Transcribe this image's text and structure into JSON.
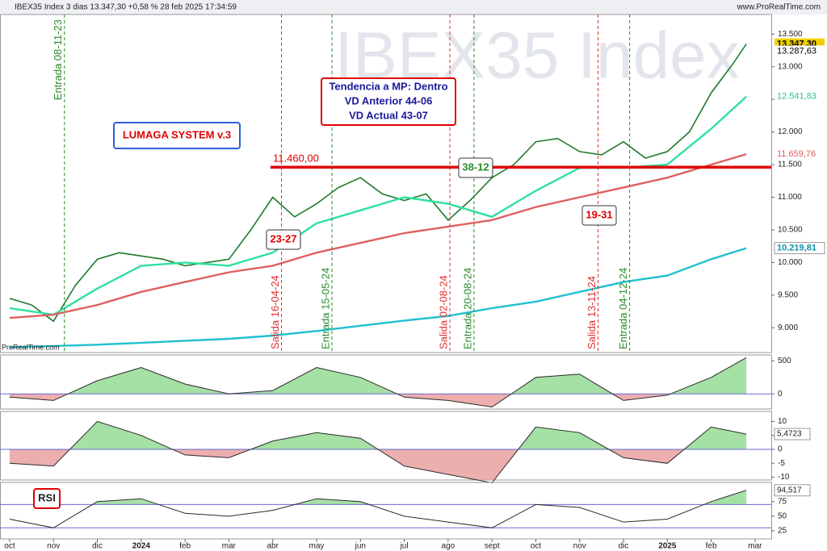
{
  "header": {
    "title": "IBEX35 Index 3 dias 13.347,30 +0,58 % 28 feb 2025 17:34:59",
    "site": "www.ProRealTime.com"
  },
  "chart_data": [
    {
      "type": "line",
      "watermark": "IBEX35 Index",
      "source": "ProRealTime.com",
      "system": "LUMAGA SYSTEM v.3",
      "trend_box": [
        "Tendencia a MP: Dentro",
        "VD Anterior 44-06",
        "VD Actual 43-07"
      ],
      "annotations": [
        "23-27",
        "38-12",
        "19-31"
      ],
      "xlim": [
        -0.22,
        17.37
      ],
      "ylim": [
        8620,
        13800
      ],
      "yticks": [
        {
          "value": 9000,
          "label": "9.000"
        },
        {
          "value": 9500,
          "label": "9.500"
        },
        {
          "value": 10000,
          "label": "10.000"
        },
        {
          "value": 10500,
          "label": "10.500"
        },
        {
          "value": 11000,
          "label": "11.000"
        },
        {
          "value": 11500,
          "label": "11.500"
        },
        {
          "value": 12000,
          "label": "12.000"
        },
        {
          "value": 12500,
          "label": "12.500"
        },
        {
          "value": 13000,
          "label": "13.000"
        },
        {
          "value": 13500,
          "label": "13.500"
        }
      ],
      "series": [
        {
          "color": "#1f7a2a",
          "x": [
            0,
            0.5,
            1,
            1.5,
            2,
            2.5,
            3,
            3.5,
            4,
            4.5,
            5,
            5.5,
            6,
            6.5,
            7,
            7.5,
            8,
            8.5,
            9,
            9.5,
            10,
            10.5,
            11,
            11.5,
            12,
            12.5,
            13,
            13.5,
            14,
            14.5,
            15,
            15.5,
            16,
            16.5,
            16.8
          ],
          "values": [
            9450,
            9350,
            9100,
            9650,
            10050,
            10150,
            10100,
            10050,
            9950,
            10000,
            10050,
            10500,
            11000,
            10700,
            10900,
            11150,
            11300,
            11050,
            10950,
            11050,
            10650,
            10950,
            11300,
            11500,
            11850,
            11900,
            11700,
            11650,
            11850,
            11600,
            11700,
            12000,
            12600,
            13050,
            13347.3
          ]
        },
        {
          "color": "#2ee0a0",
          "x": [
            0,
            1,
            2,
            3,
            4,
            5,
            6,
            7,
            8,
            9,
            10,
            11,
            12,
            13,
            14,
            15,
            16,
            16.8
          ],
          "values": [
            9300,
            9200,
            9600,
            9950,
            10000,
            9950,
            10150,
            10600,
            10800,
            11000,
            10900,
            10700,
            11100,
            11450,
            11450,
            11500,
            12050,
            12541.83
          ]
        },
        {
          "color": "#e06060",
          "x": [
            0,
            1,
            2,
            3,
            4,
            5,
            6,
            7,
            8,
            9,
            10,
            11,
            12,
            13,
            14,
            15,
            16,
            16.8
          ],
          "values": [
            9150,
            9200,
            9350,
            9550,
            9700,
            9850,
            9950,
            10150,
            10300,
            10450,
            10550,
            10650,
            10850,
            11000,
            11150,
            11300,
            11500,
            11659.76
          ]
        },
        {
          "color": "#20c0d0",
          "x": [
            0,
            1,
            2,
            3,
            4,
            5,
            6,
            7,
            8,
            9,
            10,
            11,
            12,
            13,
            14,
            15,
            16,
            16.8
          ],
          "values": [
            8700,
            8720,
            8740,
            8770,
            8800,
            8830,
            8880,
            8950,
            9030,
            9110,
            9180,
            9300,
            9400,
            9550,
            9700,
            9800,
            10050,
            10219.81
          ]
        }
      ],
      "level": {
        "value": 11460,
        "label": "11.460,00",
        "color": "#e00000"
      },
      "price_labels": [
        {
          "value": 13347.3,
          "label": "13.347,30",
          "color": "#f2d000"
        },
        {
          "value": 13287.63,
          "label": "13.287,63",
          "color": "#ffffff"
        },
        {
          "value": 12541.83,
          "label": "12.541,83",
          "color": "#2ec090"
        },
        {
          "value": 11659.76,
          "label": "11.659,76",
          "color": "#e06060"
        },
        {
          "value": 10219.81,
          "label": "10.219,81",
          "color": "#1090b0"
        }
      ],
      "signals": [
        {
          "x": 1.25,
          "label": "Entrada 08-11-23",
          "color": "#2a8a2a"
        },
        {
          "x": 6.2,
          "label": "Salida 16-04-24",
          "color": "#e03030"
        },
        {
          "x": 7.35,
          "label": "Entrada 15-05-24",
          "color": "#2a8a2a"
        },
        {
          "x": 10.04,
          "label": "Salida 02-08-24",
          "color": "#e03030"
        },
        {
          "x": 10.59,
          "label": "Entrada 20-08-24",
          "color": "#2a8a2a"
        },
        {
          "x": 13.42,
          "label": "Salida 13-11-24",
          "color": "#e03030"
        },
        {
          "x": 14.14,
          "label": "Entrada 04-12-24",
          "color": "#2a8a2a"
        }
      ]
    },
    {
      "type": "area",
      "xlim": [
        -0.22,
        17.37
      ],
      "ylim": [
        -230,
        590
      ],
      "yticks": [
        0,
        500
      ],
      "base": 0,
      "series": [
        {
          "color": "#2a2a2a",
          "x": [
            0,
            1,
            2,
            3,
            4,
            5,
            6,
            7,
            8,
            9,
            10,
            11,
            12,
            13,
            14,
            15,
            16,
            16.8
          ],
          "values": [
            -50,
            -100,
            200,
            400,
            150,
            0,
            50,
            400,
            250,
            -50,
            -100,
            -200,
            250,
            300,
            -100,
            -20,
            250,
            550
          ]
        }
      ]
    },
    {
      "type": "area",
      "xlim": [
        -0.22,
        17.37
      ],
      "ylim": [
        -11,
        13.6
      ],
      "yticks": [
        -10,
        -5,
        0,
        5,
        10
      ],
      "base": 0,
      "last": {
        "value": 5.4723,
        "label": "5,4723"
      },
      "series": [
        {
          "color": "#2a2a2a",
          "x": [
            0,
            1,
            2,
            3,
            4,
            5,
            6,
            7,
            8,
            9,
            10,
            11,
            12,
            13,
            14,
            15,
            16,
            16.8
          ],
          "values": [
            -5,
            -6,
            10,
            5,
            -2,
            -3,
            3,
            6,
            4,
            -6,
            -9,
            -12,
            8,
            6,
            -3,
            -5,
            8,
            5.4723
          ]
        }
      ]
    },
    {
      "type": "rsi",
      "name": "RSI",
      "xlim": [
        -0.22,
        17.37
      ],
      "ylim": [
        11,
        108
      ],
      "yticks": [
        25,
        50,
        75
      ],
      "levels": [
        70,
        30
      ],
      "last": {
        "value": 94.517,
        "label": "94,517"
      },
      "series": [
        {
          "color": "#2a2a2a",
          "x": [
            0,
            1,
            2,
            3,
            4,
            5,
            6,
            7,
            8,
            9,
            10,
            11,
            12,
            13,
            14,
            15,
            16,
            16.8
          ],
          "values": [
            45,
            30,
            75,
            80,
            55,
            50,
            60,
            80,
            75,
            50,
            40,
            30,
            70,
            65,
            40,
            45,
            75,
            94.517
          ]
        }
      ],
      "xticks": [
        {
          "value": 0,
          "label": "oct"
        },
        {
          "value": 1,
          "label": "nov"
        },
        {
          "value": 2,
          "label": "dic"
        },
        {
          "value": 3,
          "label": "2024"
        },
        {
          "value": 4,
          "label": "feb"
        },
        {
          "value": 5,
          "label": "mar"
        },
        {
          "value": 6,
          "label": "abr"
        },
        {
          "value": 7,
          "label": "may"
        },
        {
          "value": 8,
          "label": "jun"
        },
        {
          "value": 9,
          "label": "jul"
        },
        {
          "value": 10,
          "label": "ago"
        },
        {
          "value": 11,
          "label": "sept"
        },
        {
          "value": 12,
          "label": "oct"
        },
        {
          "value": 13,
          "label": "nov"
        },
        {
          "value": 14,
          "label": "dic"
        },
        {
          "value": 15,
          "label": "2025"
        },
        {
          "value": 16,
          "label": "feb"
        },
        {
          "value": 17,
          "label": "mar"
        }
      ]
    }
  ]
}
